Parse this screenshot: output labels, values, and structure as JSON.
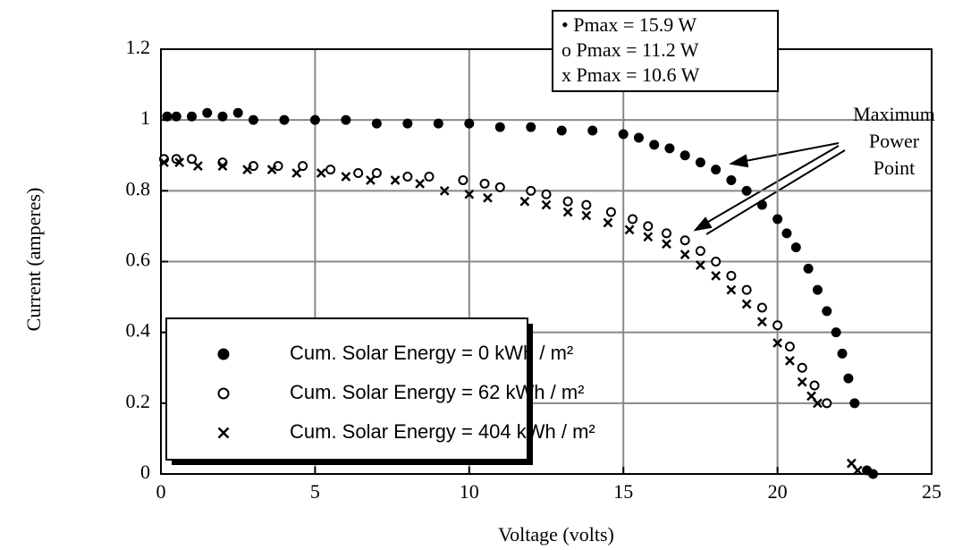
{
  "chart_data": {
    "type": "scatter",
    "xlabel": "Voltage (volts)",
    "ylabel": "Current (amperes)",
    "xlim": [
      0,
      25
    ],
    "xticks": [
      0,
      5,
      10,
      15,
      20,
      25
    ],
    "ylim": [
      0,
      1.2
    ],
    "yticks": [
      0,
      0.2,
      0.4,
      0.6,
      0.8,
      1,
      1.2
    ],
    "grid": true,
    "legend": "lower left",
    "annotations": [
      "• Pmax = 15.9 W",
      "o  Pmax = 11.2 W",
      "x  Pmax = 10.6 W"
    ],
    "callout": [
      "Maximum",
      "Power",
      "Point"
    ],
    "series": [
      {
        "name": "Cum. Solar Energy = 0 kWh / m²",
        "color": "#000000",
        "marker": "filled",
        "x": [
          0.2,
          0.5,
          1,
          1.5,
          2,
          2.5,
          3,
          4,
          5,
          6,
          7,
          8,
          9,
          10,
          11,
          12,
          13,
          14,
          15,
          15.5,
          16,
          16.5,
          17,
          17.5,
          18,
          18.5,
          19,
          19.5,
          20,
          20.3,
          20.6,
          21,
          21.3,
          21.6,
          21.9,
          22.1,
          22.3,
          22.5,
          22.9,
          23.1
        ],
        "values": [
          1.01,
          1.01,
          1.01,
          1.02,
          1.01,
          1.02,
          1.0,
          1.0,
          1.0,
          1.0,
          0.99,
          0.99,
          0.99,
          0.99,
          0.98,
          0.98,
          0.97,
          0.97,
          0.96,
          0.95,
          0.93,
          0.92,
          0.9,
          0.88,
          0.86,
          0.83,
          0.8,
          0.76,
          0.72,
          0.68,
          0.64,
          0.58,
          0.52,
          0.46,
          0.4,
          0.34,
          0.27,
          0.2,
          0.01,
          0.0
        ]
      },
      {
        "name": "Cum. Solar Energy = 62 kWh / m²",
        "color": "#000000",
        "marker": "open",
        "x": [
          0.1,
          0.5,
          1,
          2,
          3,
          3.8,
          4.6,
          5.5,
          6.4,
          7,
          8,
          8.7,
          9.8,
          10.5,
          11,
          12,
          12.5,
          13.2,
          13.8,
          14.6,
          15.3,
          15.8,
          16.4,
          17,
          17.5,
          18,
          18.5,
          19,
          19.5,
          20,
          20.4,
          20.8,
          21.2,
          21.6
        ],
        "values": [
          0.89,
          0.89,
          0.89,
          0.88,
          0.87,
          0.87,
          0.87,
          0.86,
          0.85,
          0.85,
          0.84,
          0.84,
          0.83,
          0.82,
          0.81,
          0.8,
          0.79,
          0.77,
          0.76,
          0.74,
          0.72,
          0.7,
          0.68,
          0.66,
          0.63,
          0.6,
          0.56,
          0.52,
          0.47,
          0.42,
          0.36,
          0.3,
          0.25,
          0.2
        ]
      },
      {
        "name": "Cum. Solar Energy = 404 kWh / m²",
        "color": "#000000",
        "marker": "cross",
        "x": [
          0.1,
          0.6,
          1.2,
          2,
          2.8,
          3.6,
          4.4,
          5.2,
          6,
          6.8,
          7.6,
          8.4,
          9.2,
          10,
          10.6,
          11.8,
          12.5,
          13.2,
          13.8,
          14.5,
          15.2,
          15.8,
          16.4,
          17,
          17.5,
          18,
          18.5,
          19,
          19.5,
          20,
          20.4,
          20.8,
          21.1,
          21.3,
          22.4,
          22.6
        ],
        "values": [
          0.88,
          0.88,
          0.87,
          0.87,
          0.86,
          0.86,
          0.85,
          0.85,
          0.84,
          0.83,
          0.83,
          0.82,
          0.8,
          0.79,
          0.78,
          0.77,
          0.76,
          0.74,
          0.73,
          0.71,
          0.69,
          0.67,
          0.65,
          0.62,
          0.59,
          0.56,
          0.52,
          0.48,
          0.43,
          0.37,
          0.32,
          0.26,
          0.22,
          0.2,
          0.03,
          0.01
        ]
      }
    ]
  }
}
